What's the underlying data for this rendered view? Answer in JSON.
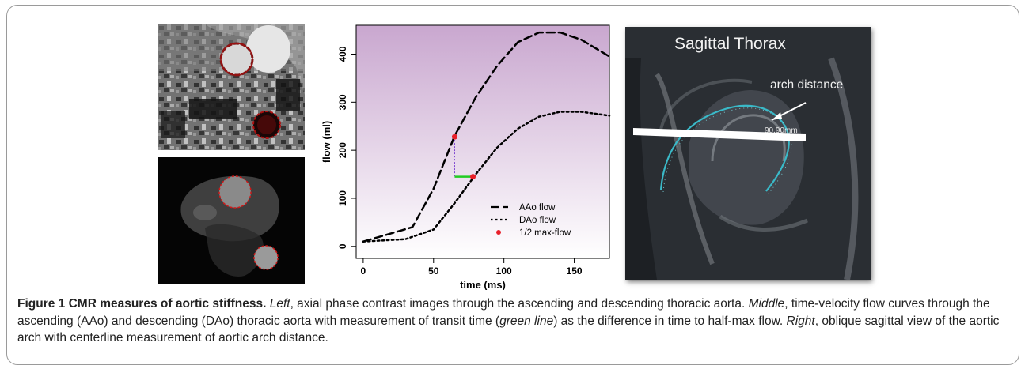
{
  "panels": {
    "mri": {
      "title": "Sagittal Thorax",
      "annotation": "arch distance",
      "measurement": "90.90mm"
    }
  },
  "caption": {
    "figure_label": "Figure 1 CMR measures of aortic stiffness.",
    "left_label": "Left",
    "left_text": ", axial phase contrast images through the ascending and descending thoracic aorta.",
    "middle_label": "Middle",
    "middle_text_1": ", time-velocity flow curves through the ascending (AAo) and descending (DAo) thoracic aorta with measurement of transit time (",
    "green_line": "green line",
    "middle_text_2": ") as the difference in time to half-max flow.",
    "right_label": "Right",
    "right_text": ", oblique sagittal view of the aortic arch with centerline measurement of aortic arch distance."
  },
  "chart_data": {
    "type": "line",
    "xlabel": "time (ms)",
    "ylabel": "flow (ml)",
    "xlim": [
      -5,
      175
    ],
    "ylim": [
      -25,
      460
    ],
    "xticks": [
      0,
      50,
      100,
      150
    ],
    "yticks": [
      0,
      100,
      200,
      300,
      400
    ],
    "series": [
      {
        "name": "AAo flow",
        "style": "dashed",
        "color": "#000000",
        "x": [
          0,
          35,
          50,
          65,
          80,
          95,
          110,
          125,
          140,
          155,
          175
        ],
        "y": [
          10,
          40,
          120,
          230,
          310,
          375,
          425,
          445,
          445,
          430,
          395
        ]
      },
      {
        "name": "DAo flow",
        "style": "dotted",
        "color": "#000000",
        "x": [
          0,
          30,
          50,
          65,
          80,
          95,
          110,
          125,
          140,
          155,
          175
        ],
        "y": [
          10,
          15,
          35,
          90,
          150,
          205,
          245,
          270,
          280,
          280,
          272
        ]
      },
      {
        "name": "1/2 max-flow",
        "style": "points",
        "color": "#e8202a",
        "x": [
          65,
          78
        ],
        "y": [
          228,
          145
        ]
      }
    ],
    "transit_line": {
      "x1": 65,
      "x2": 78,
      "y": 145,
      "color": "#22cc22"
    },
    "drop_line": {
      "x": 65,
      "y1": 228,
      "y2": 145,
      "color": "#7a3fd0"
    },
    "background": {
      "top": "#c9a7cf",
      "bottom": "#ffffff"
    },
    "legend_position": "bottom-right"
  }
}
